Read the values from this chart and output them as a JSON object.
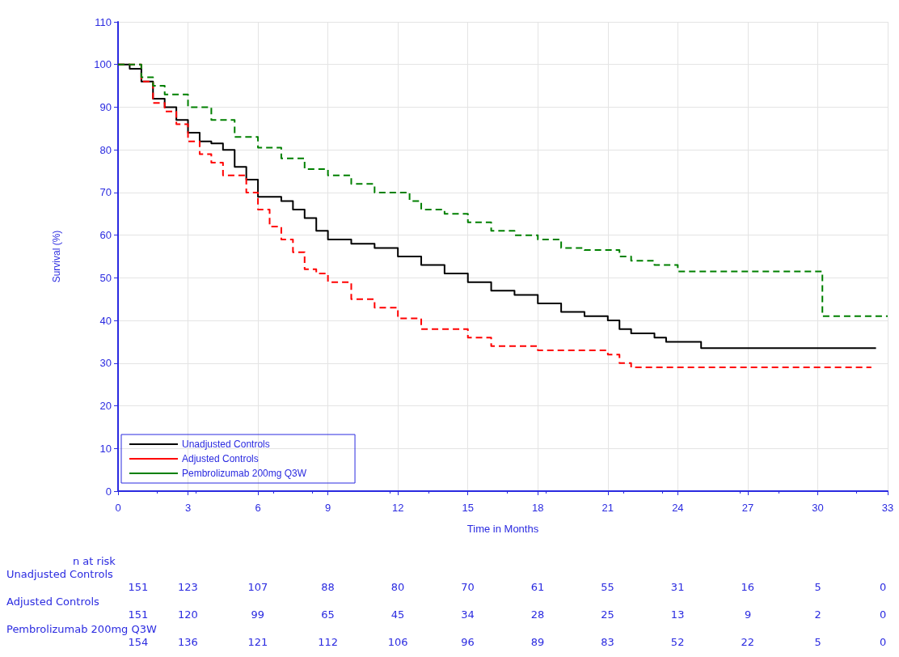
{
  "chart_data": {
    "type": "step",
    "xlabel": "Time in Months",
    "ylabel": "Survival (%)",
    "xlim": [
      0,
      33
    ],
    "xticks": [
      0,
      3,
      6,
      9,
      12,
      15,
      18,
      21,
      24,
      27,
      30,
      33
    ],
    "ylim": [
      0,
      110
    ],
    "yticks": [
      0,
      10,
      20,
      30,
      40,
      50,
      60,
      70,
      80,
      90,
      100,
      110
    ],
    "grid": true,
    "legend": "bottom left",
    "marker": "none",
    "series": [
      {
        "name": "Unadjusted Controls",
        "color": "#000000",
        "line_style": "solid",
        "x": [
          0,
          0.5,
          1,
          1.5,
          2,
          2.5,
          3,
          3.5,
          4,
          4.5,
          5,
          5.5,
          6,
          7,
          7.5,
          8,
          8.5,
          9,
          10,
          11,
          12,
          13,
          14,
          15,
          16,
          17,
          18,
          19,
          20,
          21,
          21.5,
          22,
          23,
          23.5,
          25,
          32.5
        ],
        "values": [
          100,
          99,
          96,
          92,
          90,
          87,
          84,
          82,
          81.5,
          80,
          76,
          73,
          69,
          68,
          66,
          64,
          61,
          59,
          58,
          57,
          55,
          53,
          51,
          49,
          47,
          46,
          44,
          42,
          41,
          40,
          38,
          37,
          36,
          35,
          33.5,
          33.5
        ]
      },
      {
        "name": "Adjusted Controls",
        "color": "#ff0000",
        "line_style": "dashed",
        "x": [
          0,
          1,
          1.5,
          2,
          2.5,
          3,
          3.5,
          4,
          4.5,
          5.5,
          6,
          6.5,
          7,
          7.5,
          8,
          8.5,
          9,
          10,
          11,
          12,
          13,
          15,
          16,
          18,
          21,
          21.5,
          22,
          32.3
        ],
        "values": [
          100,
          96,
          91,
          89,
          86,
          82,
          79,
          77,
          74,
          70,
          66,
          62,
          59,
          56,
          52,
          51,
          49,
          45,
          43,
          40.5,
          38,
          36,
          34,
          33,
          32,
          30,
          29,
          29
        ]
      },
      {
        "name": "Pembrolizumab 200mg Q3W",
        "color": "#008000",
        "line_style": "dashed",
        "x": [
          0,
          1,
          1.5,
          2,
          3,
          4,
          5,
          6,
          7,
          8,
          9,
          10,
          11,
          12.5,
          13,
          14,
          15,
          16,
          17,
          18,
          19,
          20,
          21.5,
          22,
          23,
          24,
          30,
          30.2,
          33
        ],
        "values": [
          100,
          97,
          95,
          93,
          90,
          87,
          83,
          80.5,
          78,
          75.5,
          74,
          72,
          70,
          68,
          66,
          65,
          63,
          61,
          60,
          59,
          57,
          56.5,
          55,
          54,
          53,
          51.5,
          51.5,
          41,
          41
        ]
      }
    ],
    "annotations": [
      "n at risk",
      "Unadjusted Controls",
      "151",
      "123",
      "107",
      "88",
      "80",
      "70",
      "61",
      "55",
      "31",
      "16",
      "5",
      "0",
      "Adjusted Controls",
      "151",
      "120",
      "99",
      "65",
      "45",
      "34",
      "28",
      "25",
      "13",
      "9",
      "2",
      "0",
      "Pembrolizumab 200mg Q3W",
      "154",
      "136",
      "121",
      "112",
      "106",
      "96",
      "89",
      "83",
      "52",
      "22",
      "5",
      "0"
    ]
  }
}
